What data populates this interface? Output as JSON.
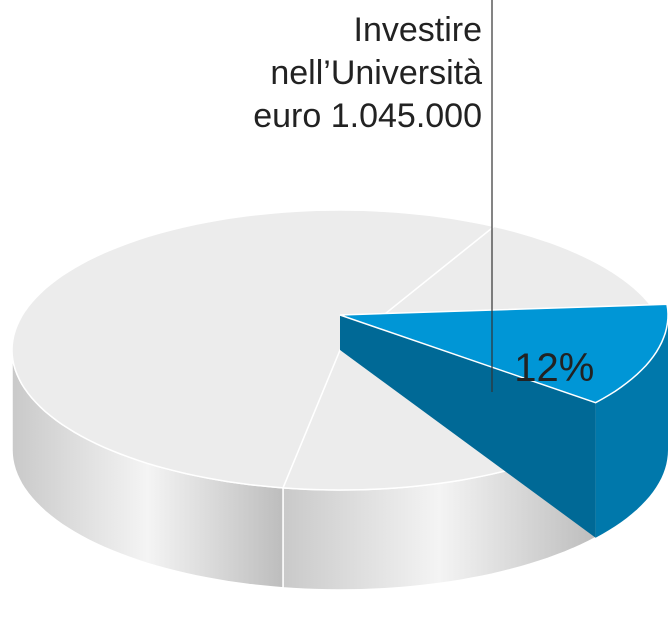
{
  "chart_data": {
    "type": "pie3d",
    "categories": [
      null,
      "Investire nell’Università",
      null,
      null
    ],
    "values": [
      16,
      12,
      17,
      55
    ],
    "value_labels": [
      null,
      "12%",
      null,
      null
    ],
    "colors": [
      "#ececec",
      "#0096d6",
      "#ececec",
      "#ececec"
    ],
    "annotation": [
      "Investire",
      "nell’Università",
      "euro 1.045.000"
    ]
  }
}
